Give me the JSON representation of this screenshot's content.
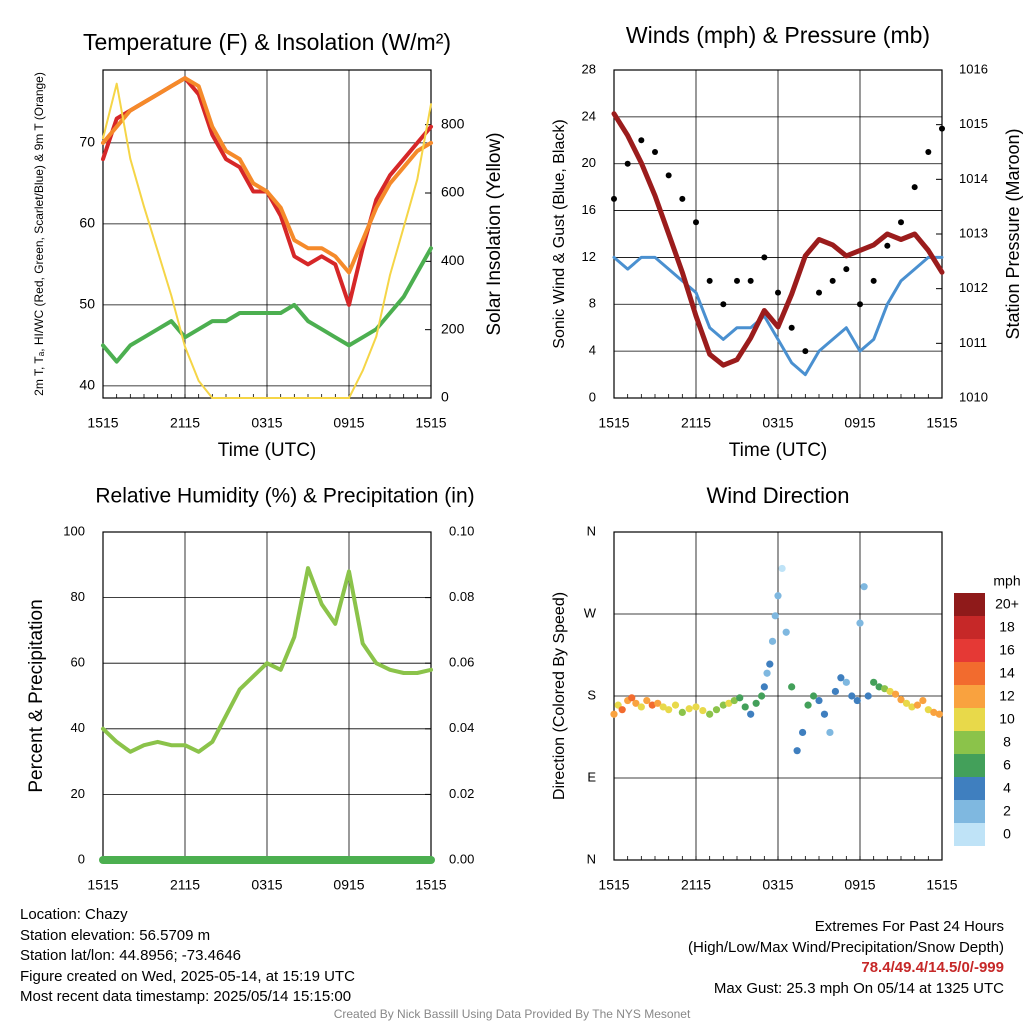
{
  "chart_data": [
    {
      "id": "temp",
      "type": "line",
      "title": "Temperature (F) & Insolation (W/m²)",
      "xlabel": "Time (UTC)",
      "ylabel": "2m T, Tₐ, HI/WC (Red, Green, Scarlet/Blue) & 9m T (Orange)",
      "y2label": "Solar Insolation (Yellow)",
      "x_ticks": [
        "1515",
        "2115",
        "0315",
        "0915",
        "1515"
      ],
      "ylim": [
        38.5,
        79
      ],
      "y_ticks": [
        40,
        50,
        60,
        70
      ],
      "y2lim": [
        0,
        960
      ],
      "y2_ticks": [
        0,
        200,
        400,
        600,
        800
      ],
      "x_hours": [
        0,
        1,
        2,
        3,
        4,
        5,
        6,
        7,
        8,
        9,
        10,
        11,
        12,
        13,
        14,
        15,
        16,
        17,
        18,
        19,
        20,
        21,
        22,
        23,
        24
      ],
      "series": [
        {
          "name": "2m T",
          "color": "#d62728",
          "values": [
            68,
            73,
            74,
            75,
            76,
            77,
            78,
            76,
            71,
            68,
            67,
            64,
            64,
            61,
            56,
            55,
            56,
            55,
            50,
            57,
            63,
            66,
            68,
            70,
            72
          ]
        },
        {
          "name": "9m T",
          "color": "#f58a2a",
          "values": [
            70,
            72,
            74,
            75,
            76,
            77,
            78,
            77,
            72,
            69,
            68,
            65,
            64,
            62,
            58,
            57,
            57,
            56,
            54,
            58,
            62,
            65,
            67,
            69,
            70
          ]
        },
        {
          "name": "Dew point",
          "color": "#4caf50",
          "values": [
            45,
            43,
            45,
            46,
            47,
            48,
            46,
            47,
            48,
            48,
            49,
            49,
            49,
            49,
            50,
            48,
            47,
            46,
            45,
            46,
            47,
            49,
            51,
            54,
            57
          ]
        },
        {
          "name": "Solar Insolation",
          "color": "#f5d547",
          "axis": "y2",
          "values": [
            760,
            920,
            700,
            560,
            430,
            300,
            150,
            50,
            0,
            0,
            0,
            0,
            0,
            0,
            0,
            0,
            0,
            0,
            0,
            80,
            180,
            360,
            500,
            640,
            860
          ]
        }
      ]
    },
    {
      "id": "winds",
      "type": "line",
      "title": "Winds (mph) & Pressure (mb)",
      "xlabel": "Time (UTC)",
      "ylabel": "Sonic Wind & Gust (Blue, Black)",
      "y2label": "Station Pressure (Maroon)",
      "x_ticks": [
        "1515",
        "2115",
        "0315",
        "0915",
        "1515"
      ],
      "ylim": [
        0,
        28
      ],
      "y_ticks": [
        0,
        4,
        8,
        12,
        16,
        20,
        24,
        28
      ],
      "y2lim": [
        1010,
        1016
      ],
      "y2_ticks": [
        1010,
        1011,
        1012,
        1013,
        1014,
        1015,
        1016
      ],
      "x_hours": [
        0,
        1,
        2,
        3,
        4,
        5,
        6,
        7,
        8,
        9,
        10,
        11,
        12,
        13,
        14,
        15,
        16,
        17,
        18,
        19,
        20,
        21,
        22,
        23,
        24
      ],
      "series": [
        {
          "name": "Sonic Wind",
          "color": "#4a90d0",
          "values": [
            12,
            11,
            12,
            12,
            11,
            10,
            9,
            6,
            5,
            6,
            6,
            7,
            5,
            3,
            2,
            4,
            5,
            6,
            4,
            5,
            8,
            10,
            11,
            12,
            12
          ]
        },
        {
          "name": "Gust",
          "color": "#000000",
          "type": "scatter",
          "values": [
            17,
            20,
            22,
            21,
            19,
            17,
            15,
            10,
            8,
            10,
            10,
            12,
            9,
            6,
            4,
            9,
            10,
            11,
            8,
            10,
            13,
            15,
            18,
            21,
            23
          ]
        },
        {
          "name": "Station Pressure",
          "color": "#9b1c1c",
          "axis": "y2",
          "values": [
            1015.2,
            1014.8,
            1014.3,
            1013.7,
            1013.0,
            1012.3,
            1011.5,
            1010.8,
            1010.6,
            1010.7,
            1011.1,
            1011.6,
            1011.3,
            1011.9,
            1012.6,
            1012.9,
            1012.8,
            1012.6,
            1012.7,
            1012.8,
            1013.0,
            1012.9,
            1013.0,
            1012.7,
            1012.3
          ]
        }
      ]
    },
    {
      "id": "rh",
      "type": "line",
      "title": "Relative Humidity (%) & Precipitation (in)",
      "ylabel": "Percent & Precipitation",
      "x_ticks": [
        "1515",
        "2115",
        "0315",
        "0915",
        "1515"
      ],
      "ylim": [
        0,
        100
      ],
      "y_ticks": [
        0,
        20,
        40,
        60,
        80,
        100
      ],
      "y2lim": [
        0,
        0.1
      ],
      "y2_ticks": [
        "0.00",
        "0.02",
        "0.04",
        "0.06",
        "0.08",
        "0.10"
      ],
      "x_hours": [
        0,
        1,
        2,
        3,
        4,
        5,
        6,
        7,
        8,
        9,
        10,
        11,
        12,
        13,
        14,
        15,
        16,
        17,
        18,
        19,
        20,
        21,
        22,
        23,
        24
      ],
      "series": [
        {
          "name": "Relative Humidity",
          "color": "#8bc34a",
          "values": [
            40,
            36,
            33,
            35,
            36,
            35,
            35,
            33,
            36,
            44,
            52,
            56,
            60,
            58,
            68,
            89,
            78,
            72,
            88,
            66,
            60,
            58,
            57,
            57,
            58
          ]
        },
        {
          "name": "Precipitation",
          "color": "#4caf50",
          "axis": "y2",
          "values": [
            0,
            0,
            0,
            0,
            0,
            0,
            0,
            0,
            0,
            0,
            0,
            0,
            0,
            0,
            0,
            0,
            0,
            0,
            0,
            0,
            0,
            0,
            0,
            0,
            0
          ]
        }
      ]
    },
    {
      "id": "winddir",
      "type": "scatter",
      "title": "Wind Direction",
      "ylabel": "Direction (Colored By Speed)",
      "x_ticks": [
        "1515",
        "2115",
        "0315",
        "0915",
        "1515"
      ],
      "y_ticks": [
        "N",
        "E",
        "S",
        "W",
        "N"
      ],
      "ylim": [
        0,
        360
      ],
      "colorbar": {
        "unit": "mph",
        "labels": [
          "20+",
          "18",
          "16",
          "14",
          "12",
          "10",
          "8",
          "6",
          "4",
          "2",
          "0"
        ],
        "colors": [
          "#8f1a1a",
          "#c62828",
          "#e53935",
          "#f26b2e",
          "#f9a23f",
          "#e8d94a",
          "#8bc34a",
          "#43a05a",
          "#3f7fbf",
          "#7fb8e0",
          "#bfe3f7"
        ]
      },
      "points_x_hours": [
        0,
        0.3,
        0.6,
        1,
        1.3,
        1.6,
        2,
        2.4,
        2.8,
        3.2,
        3.6,
        4,
        4.5,
        5,
        5.5,
        6,
        6.5,
        7,
        7.5,
        8,
        8.4,
        8.8,
        9.2,
        9.6,
        10,
        10.4,
        10.8,
        11,
        11.2,
        11.4,
        11.6,
        11.8,
        12,
        12.3,
        12.6,
        13,
        13.4,
        13.8,
        14.2,
        14.6,
        15,
        15.4,
        15.8,
        16.2,
        16.6,
        17,
        17.4,
        17.8,
        18,
        18.3,
        18.6,
        19,
        19.4,
        19.8,
        20.2,
        20.6,
        21,
        21.4,
        21.8,
        22.2,
        22.6,
        23,
        23.4,
        23.8
      ],
      "points_dir": [
        160,
        170,
        165,
        175,
        178,
        172,
        168,
        175,
        170,
        172,
        168,
        165,
        170,
        162,
        166,
        168,
        164,
        160,
        165,
        170,
        172,
        175,
        178,
        168,
        160,
        172,
        180,
        190,
        205,
        215,
        240,
        268,
        290,
        320,
        250,
        190,
        120,
        140,
        170,
        180,
        175,
        160,
        140,
        185,
        200,
        195,
        180,
        175,
        260,
        300,
        180,
        195,
        190,
        188,
        185,
        182,
        176,
        172,
        168,
        170,
        175,
        165,
        162,
        160
      ],
      "points_speed": [
        12,
        10,
        13,
        11,
        14,
        12,
        9,
        11,
        13,
        12,
        10,
        9,
        10,
        8,
        9,
        10,
        9,
        8,
        7,
        8,
        9,
        8,
        6,
        5,
        4,
        5,
        6,
        3,
        2,
        3,
        1,
        2,
        1,
        0,
        2,
        5,
        3,
        4,
        5,
        6,
        4,
        3,
        2,
        4,
        3,
        2,
        3,
        4,
        1,
        1,
        3,
        5,
        6,
        8,
        10,
        12,
        11,
        10,
        9,
        12,
        11,
        10,
        12,
        11
      ]
    }
  ],
  "footer": {
    "location": "Location: Chazy",
    "elevation": "Station elevation: 56.5709 m",
    "latlon": "Station lat/lon: 44.8956; -73.4646",
    "created": "Figure created on Wed, 2025-05-14, at 15:19 UTC",
    "recent": "Most recent data timestamp: 2025/05/14 15:15:00",
    "extremes_title": "Extremes For Past 24 Hours",
    "extremes_desc": "(High/Low/Max Wind/Precipitation/Snow Depth)",
    "extremes_values": "78.4/49.4/14.5/0/-999",
    "max_gust": "Max Gust: 25.3 mph On 05/14 at 1325 UTC"
  },
  "credit": "Created By Nick Bassill Using Data Provided By The NYS Mesonet"
}
